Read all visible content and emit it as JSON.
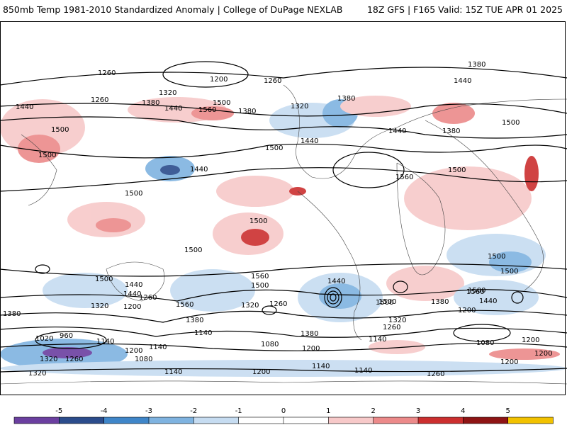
{
  "header": {
    "left_title": "850mb Temp 1981-2010 Standardized Anomaly | College of DuPage NEXLAB",
    "right_title": "18Z GFS | F165 Valid: 15Z TUE APR 01 2025"
  },
  "contour_labels": [
    "1320",
    "1380",
    "1260",
    "1200",
    "1260",
    "1440",
    "1320",
    "1380",
    "1440",
    "1560",
    "1500",
    "1380",
    "1260",
    "1440",
    "1500",
    "1380",
    "1320",
    "1440",
    "1500",
    "1380",
    "1440",
    "1500",
    "1440",
    "1500",
    "1560",
    "1500",
    "1500",
    "1500",
    "1380",
    "1500",
    "1500",
    "1500",
    "1440",
    "1560",
    "1500",
    "1500",
    "1440",
    "1260",
    "1200",
    "1560",
    "1500",
    "1440",
    "1320",
    "1260",
    "1560",
    "1500",
    "1380",
    "1320",
    "1440",
    "1200",
    "1380",
    "1260",
    "1320",
    "1140",
    "1080",
    "1380",
    "1140",
    "1200",
    "1020",
    "960",
    "1140",
    "1200",
    "1320",
    "1260",
    "1080",
    "1140",
    "1200",
    "1140",
    "1140",
    "1320",
    "1200",
    "1080",
    "1200",
    "1260",
    "1140",
    "1200",
    "1500"
  ],
  "colorbar": {
    "tick_labels": [
      "-5",
      "-4",
      "-3",
      "-2",
      "-1",
      "0",
      "1",
      "2",
      "3",
      "4",
      "5"
    ],
    "colors": [
      "#6b3fa0",
      "#2b4c8c",
      "#3f86c9",
      "#7fb3e0",
      "#c6dcf1",
      "#ffffff",
      "#ffffff",
      "#f7c9c9",
      "#ec8a8a",
      "#cc2f2f",
      "#8e1414",
      "#f2c200"
    ]
  }
}
